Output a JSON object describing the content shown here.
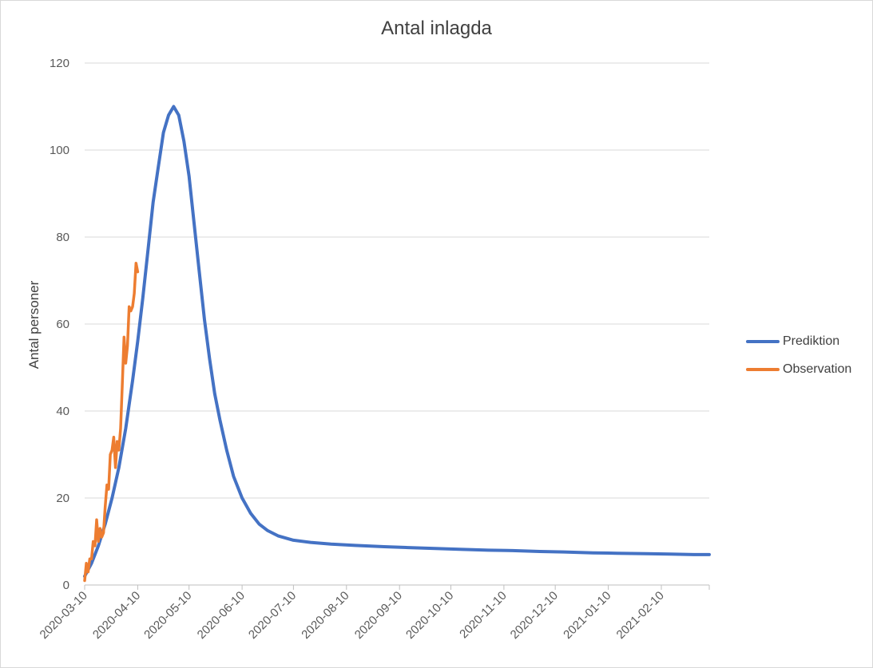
{
  "chart_data": {
    "type": "line",
    "title": "Antal inlagda",
    "ylabel": "Antal personer",
    "xlabel": "",
    "ylim": [
      0,
      120
    ],
    "yticks": [
      0,
      20,
      40,
      60,
      80,
      100,
      120
    ],
    "xlim": [
      "2020-03-10",
      "2021-03-10"
    ],
    "xticks": [
      "2020-03-10",
      "2020-04-10",
      "2020-05-10",
      "2020-06-10",
      "2020-07-10",
      "2020-08-10",
      "2020-09-10",
      "2020-10-10",
      "2020-11-10",
      "2020-12-10",
      "2021-01-10",
      "2021-02-10"
    ],
    "grid": true,
    "legend": "right",
    "series": [
      {
        "name": "Prediktion",
        "color": "#4472c4",
        "points": [
          [
            "2020-03-10",
            2
          ],
          [
            "2020-03-14",
            5
          ],
          [
            "2020-03-18",
            9
          ],
          [
            "2020-03-22",
            14
          ],
          [
            "2020-03-26",
            20
          ],
          [
            "2020-03-30",
            27
          ],
          [
            "2020-04-03",
            36
          ],
          [
            "2020-04-07",
            47
          ],
          [
            "2020-04-10",
            56
          ],
          [
            "2020-04-13",
            66
          ],
          [
            "2020-04-16",
            77
          ],
          [
            "2020-04-19",
            88
          ],
          [
            "2020-04-22",
            96
          ],
          [
            "2020-04-25",
            104
          ],
          [
            "2020-04-28",
            108
          ],
          [
            "2020-05-01",
            110
          ],
          [
            "2020-05-04",
            108
          ],
          [
            "2020-05-07",
            102
          ],
          [
            "2020-05-10",
            94
          ],
          [
            "2020-05-13",
            83
          ],
          [
            "2020-05-16",
            72
          ],
          [
            "2020-05-19",
            61
          ],
          [
            "2020-05-22",
            52
          ],
          [
            "2020-05-25",
            44
          ],
          [
            "2020-05-28",
            38
          ],
          [
            "2020-06-01",
            31
          ],
          [
            "2020-06-05",
            25
          ],
          [
            "2020-06-10",
            20
          ],
          [
            "2020-06-15",
            16.5
          ],
          [
            "2020-06-20",
            14
          ],
          [
            "2020-06-25",
            12.5
          ],
          [
            "2020-07-01",
            11.3
          ],
          [
            "2020-07-10",
            10.3
          ],
          [
            "2020-07-20",
            9.8
          ],
          [
            "2020-08-01",
            9.4
          ],
          [
            "2020-08-15",
            9.1
          ],
          [
            "2020-09-01",
            8.8
          ],
          [
            "2020-09-15",
            8.6
          ],
          [
            "2020-10-01",
            8.4
          ],
          [
            "2020-10-15",
            8.2
          ],
          [
            "2020-11-01",
            8.0
          ],
          [
            "2020-11-15",
            7.9
          ],
          [
            "2020-12-01",
            7.7
          ],
          [
            "2020-12-15",
            7.6
          ],
          [
            "2021-01-01",
            7.4
          ],
          [
            "2021-01-15",
            7.3
          ],
          [
            "2021-02-01",
            7.2
          ],
          [
            "2021-02-15",
            7.1
          ],
          [
            "2021-03-01",
            7.0
          ],
          [
            "2021-03-10",
            7.0
          ]
        ]
      },
      {
        "name": "Observation",
        "color": "#ed7d31",
        "points": [
          [
            "2020-03-10",
            1
          ],
          [
            "2020-03-11",
            5
          ],
          [
            "2020-03-12",
            3
          ],
          [
            "2020-03-13",
            6
          ],
          [
            "2020-03-14",
            6
          ],
          [
            "2020-03-15",
            10
          ],
          [
            "2020-03-16",
            9
          ],
          [
            "2020-03-17",
            15
          ],
          [
            "2020-03-18",
            10
          ],
          [
            "2020-03-19",
            13
          ],
          [
            "2020-03-20",
            11
          ],
          [
            "2020-03-21",
            12
          ],
          [
            "2020-03-22",
            18
          ],
          [
            "2020-03-23",
            23
          ],
          [
            "2020-03-24",
            22
          ],
          [
            "2020-03-25",
            30
          ],
          [
            "2020-03-26",
            31
          ],
          [
            "2020-03-27",
            34
          ],
          [
            "2020-03-28",
            27
          ],
          [
            "2020-03-29",
            33
          ],
          [
            "2020-03-30",
            31
          ],
          [
            "2020-03-31",
            36
          ],
          [
            "2020-04-01",
            46
          ],
          [
            "2020-04-02",
            57
          ],
          [
            "2020-04-03",
            51
          ],
          [
            "2020-04-04",
            55
          ],
          [
            "2020-04-05",
            64
          ],
          [
            "2020-04-06",
            63
          ],
          [
            "2020-04-07",
            64
          ],
          [
            "2020-04-08",
            67
          ],
          [
            "2020-04-09",
            74
          ],
          [
            "2020-04-10",
            72
          ]
        ]
      }
    ]
  }
}
